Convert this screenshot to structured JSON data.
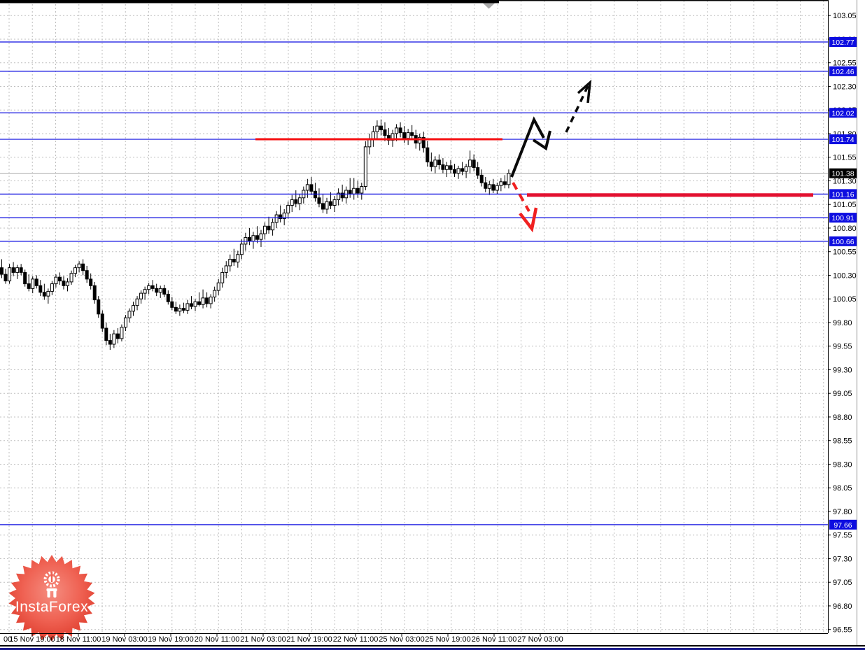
{
  "watermark": {
    "label": "InstaForex"
  },
  "colors": {
    "background": "#ffffff",
    "grid": "#bfbfbf",
    "candle_outline": "#000000",
    "bull_body": "#ffffff",
    "bear_body": "#000000",
    "blue_level": "#0d0de0",
    "blue_label_bg": "#0d0de0",
    "current_label_bg": "#000000",
    "label_text": "#ffffff",
    "tick_text": "#000000",
    "red_line": "#f50f12",
    "red_thick": "#e31130",
    "red_arrow": "#f02020",
    "black_arrow": "#0a0a0a",
    "bid_line": "#ababab",
    "triangle": "#a8a8a8",
    "logo_red_center": "#f58d80",
    "logo_red_mid": "#ef6152",
    "logo_red_edge": "#dd3a2a",
    "bottom_navy": "#1b1b8c"
  },
  "y_axis": {
    "tick_labels": [
      "103.05",
      "102.80",
      "102.55",
      "102.30",
      "102.05",
      "101.80",
      "101.55",
      "101.30",
      "101.05",
      "100.80",
      "100.55",
      "100.30",
      "100.05",
      "99.80",
      "99.55",
      "99.30",
      "99.05",
      "98.80",
      "98.55",
      "98.30",
      "98.05",
      "97.80",
      "97.55",
      "97.30",
      "97.05",
      "96.80",
      "96.55"
    ]
  },
  "x_axis": {
    "labels": [
      "00",
      "15 Nov 19:00",
      "18 Nov 11:00",
      "19 Nov 03:00",
      "19 Nov 19:00",
      "20 Nov 11:00",
      "21 Nov 03:00",
      "21 Nov 19:00",
      "22 Nov 11:00",
      "25 Nov 03:00",
      "25 Nov 19:00",
      "26 Nov 11:00",
      "27 Nov 03:00"
    ]
  },
  "chart_data": {
    "type": "candlestick",
    "title": "",
    "ylabel": "price",
    "y_tick_step": 0.25,
    "y_range": [
      96.45,
      103.2
    ],
    "grid": true,
    "current_price": {
      "value": 101.38,
      "label": "101.38"
    },
    "levels": [
      {
        "price": 102.77,
        "label": "102.77"
      },
      {
        "price": 102.46,
        "label": "102.46"
      },
      {
        "price": 102.02,
        "label": "102.02"
      },
      {
        "price": 101.74,
        "label": "101.74"
      },
      {
        "price": 101.16,
        "label": "101.16"
      },
      {
        "price": 100.91,
        "label": "100.91"
      },
      {
        "price": 100.66,
        "label": "100.66"
      },
      {
        "price": 97.66,
        "label": "97.66"
      }
    ],
    "red_segments": [
      {
        "price": 101.74,
        "from_x": 365,
        "to_x": 718,
        "width": 3,
        "role": "resistance"
      },
      {
        "price": 101.15,
        "from_x": 753,
        "to_x": 1162,
        "width": 5,
        "role": "support"
      }
    ],
    "candles": [
      [
        100.38,
        100.47,
        100.27,
        100.31
      ],
      [
        100.31,
        100.37,
        100.21,
        100.24
      ],
      [
        100.24,
        100.42,
        100.21,
        100.38
      ],
      [
        100.38,
        100.44,
        100.29,
        100.33
      ],
      [
        100.33,
        100.41,
        100.26,
        100.38
      ],
      [
        100.38,
        100.42,
        100.3,
        100.33
      ],
      [
        100.33,
        100.36,
        100.18,
        100.21
      ],
      [
        100.21,
        100.31,
        100.13,
        100.16
      ],
      [
        100.16,
        100.29,
        100.11,
        100.26
      ],
      [
        100.26,
        100.3,
        100.16,
        100.19
      ],
      [
        100.19,
        100.25,
        100.08,
        100.12
      ],
      [
        100.12,
        100.21,
        100.04,
        100.08
      ],
      [
        100.08,
        100.16,
        100.0,
        100.13
      ],
      [
        100.13,
        100.24,
        100.09,
        100.21
      ],
      [
        100.21,
        100.31,
        100.17,
        100.28
      ],
      [
        100.28,
        100.33,
        100.2,
        100.24
      ],
      [
        100.24,
        100.29,
        100.15,
        100.19
      ],
      [
        100.19,
        100.27,
        100.13,
        100.23
      ],
      [
        100.23,
        100.35,
        100.2,
        100.32
      ],
      [
        100.32,
        100.41,
        100.28,
        100.38
      ],
      [
        100.38,
        100.45,
        100.33,
        100.42
      ],
      [
        100.42,
        100.47,
        100.3,
        100.35
      ],
      [
        100.35,
        100.4,
        100.22,
        100.26
      ],
      [
        100.26,
        100.32,
        100.15,
        100.19
      ],
      [
        100.19,
        100.23,
        100.0,
        100.04
      ],
      [
        100.04,
        100.08,
        99.85,
        99.89
      ],
      [
        99.89,
        99.93,
        99.7,
        99.74
      ],
      [
        99.74,
        99.8,
        99.56,
        99.61
      ],
      [
        99.61,
        99.68,
        99.51,
        99.57
      ],
      [
        99.57,
        99.72,
        99.53,
        99.68
      ],
      [
        99.68,
        99.74,
        99.58,
        99.63
      ],
      [
        99.63,
        99.78,
        99.6,
        99.75
      ],
      [
        99.75,
        99.88,
        99.71,
        99.85
      ],
      [
        99.85,
        99.95,
        99.8,
        99.92
      ],
      [
        99.92,
        100.02,
        99.87,
        99.98
      ],
      [
        99.98,
        100.08,
        99.93,
        100.05
      ],
      [
        100.05,
        100.14,
        100.0,
        100.11
      ],
      [
        100.11,
        100.18,
        100.04,
        100.15
      ],
      [
        100.15,
        100.22,
        100.1,
        100.19
      ],
      [
        100.19,
        100.25,
        100.13,
        100.16
      ],
      [
        100.16,
        100.21,
        100.08,
        100.12
      ],
      [
        100.12,
        100.19,
        100.06,
        100.16
      ],
      [
        100.16,
        100.2,
        100.07,
        100.1
      ],
      [
        100.1,
        100.14,
        99.99,
        100.02
      ],
      [
        100.02,
        100.07,
        99.93,
        99.96
      ],
      [
        99.96,
        100.02,
        99.89,
        99.92
      ],
      [
        99.92,
        99.99,
        99.87,
        99.95
      ],
      [
        99.95,
        100.01,
        99.9,
        99.93
      ],
      [
        99.93,
        100.04,
        99.89,
        100.0
      ],
      [
        100.0,
        100.08,
        99.94,
        99.97
      ],
      [
        99.97,
        100.05,
        99.92,
        100.02
      ],
      [
        100.02,
        100.12,
        99.97,
        99.99
      ],
      [
        99.99,
        100.15,
        99.95,
        100.06
      ],
      [
        100.06,
        100.12,
        99.96,
        100.0
      ],
      [
        100.0,
        100.1,
        99.95,
        100.07
      ],
      [
        100.07,
        100.18,
        100.02,
        100.14
      ],
      [
        100.14,
        100.26,
        100.09,
        100.22
      ],
      [
        100.22,
        100.38,
        100.17,
        100.33
      ],
      [
        100.33,
        100.45,
        100.27,
        100.4
      ],
      [
        100.4,
        100.52,
        100.34,
        100.47
      ],
      [
        100.47,
        100.58,
        100.4,
        100.44
      ],
      [
        100.44,
        100.56,
        100.38,
        100.52
      ],
      [
        100.52,
        100.68,
        100.47,
        100.63
      ],
      [
        100.63,
        100.75,
        100.56,
        100.7
      ],
      [
        100.7,
        100.8,
        100.62,
        100.66
      ],
      [
        100.66,
        100.76,
        100.58,
        100.72
      ],
      [
        100.72,
        100.82,
        100.64,
        100.68
      ],
      [
        100.68,
        100.78,
        100.6,
        100.74
      ],
      [
        100.74,
        100.86,
        100.68,
        100.82
      ],
      [
        100.82,
        100.92,
        100.74,
        100.78
      ],
      [
        100.78,
        100.9,
        100.72,
        100.86
      ],
      [
        100.86,
        100.98,
        100.8,
        100.94
      ],
      [
        100.94,
        101.04,
        100.86,
        100.9
      ],
      [
        100.9,
        101.0,
        100.83,
        100.96
      ],
      [
        100.96,
        101.08,
        100.9,
        101.04
      ],
      [
        101.04,
        101.15,
        100.97,
        101.1
      ],
      [
        101.1,
        101.2,
        101.02,
        101.06
      ],
      [
        101.06,
        101.16,
        100.99,
        101.12
      ],
      [
        101.12,
        101.24,
        101.06,
        101.2
      ],
      [
        101.2,
        101.32,
        101.12,
        101.26
      ],
      [
        101.26,
        101.34,
        101.15,
        101.19
      ],
      [
        101.19,
        101.28,
        101.08,
        101.12
      ],
      [
        101.12,
        101.22,
        101.02,
        101.06
      ],
      [
        101.06,
        101.16,
        100.96,
        101.0
      ],
      [
        101.0,
        101.12,
        100.95,
        101.08
      ],
      [
        101.08,
        101.18,
        101.0,
        101.04
      ],
      [
        101.04,
        101.14,
        100.97,
        101.1
      ],
      [
        101.1,
        101.22,
        101.04,
        101.17
      ],
      [
        101.17,
        101.26,
        101.08,
        101.12
      ],
      [
        101.12,
        101.24,
        101.06,
        101.2
      ],
      [
        101.2,
        101.33,
        101.12,
        101.16
      ],
      [
        101.16,
        101.33,
        101.1,
        101.22
      ],
      [
        101.22,
        101.3,
        101.12,
        101.17
      ],
      [
        101.17,
        101.28,
        101.1,
        101.24
      ],
      [
        101.24,
        101.72,
        101.2,
        101.66
      ],
      [
        101.66,
        101.8,
        101.58,
        101.74
      ],
      [
        101.74,
        101.88,
        101.66,
        101.82
      ],
      [
        101.82,
        101.94,
        101.74,
        101.88
      ],
      [
        101.88,
        101.95,
        101.78,
        101.84
      ],
      [
        101.84,
        101.92,
        101.72,
        101.78
      ],
      [
        101.78,
        101.86,
        101.68,
        101.73
      ],
      [
        101.73,
        101.84,
        101.66,
        101.8
      ],
      [
        101.8,
        101.9,
        101.72,
        101.86
      ],
      [
        101.86,
        101.92,
        101.76,
        101.81
      ],
      [
        101.81,
        101.88,
        101.7,
        101.75
      ],
      [
        101.75,
        101.85,
        101.68,
        101.81
      ],
      [
        101.81,
        101.89,
        101.73,
        101.78
      ],
      [
        101.78,
        101.84,
        101.64,
        101.7
      ],
      [
        101.7,
        101.8,
        101.62,
        101.76
      ],
      [
        101.76,
        101.82,
        101.6,
        101.65
      ],
      [
        101.65,
        101.72,
        101.45,
        101.5
      ],
      [
        101.5,
        101.6,
        101.4,
        101.45
      ],
      [
        101.45,
        101.56,
        101.38,
        101.52
      ],
      [
        101.52,
        101.58,
        101.42,
        101.47
      ],
      [
        101.47,
        101.54,
        101.38,
        101.42
      ],
      [
        101.42,
        101.5,
        101.34,
        101.46
      ],
      [
        101.46,
        101.52,
        101.38,
        101.42
      ],
      [
        101.42,
        101.48,
        101.34,
        101.38
      ],
      [
        101.38,
        101.46,
        101.32,
        101.43
      ],
      [
        101.43,
        101.5,
        101.36,
        101.4
      ],
      [
        101.4,
        101.48,
        101.33,
        101.45
      ],
      [
        101.45,
        101.62,
        101.38,
        101.52
      ],
      [
        101.52,
        101.58,
        101.4,
        101.44
      ],
      [
        101.44,
        101.5,
        101.32,
        101.36
      ],
      [
        101.36,
        101.42,
        101.24,
        101.28
      ],
      [
        101.28,
        101.34,
        101.18,
        101.22
      ],
      [
        101.22,
        101.3,
        101.15,
        101.26
      ],
      [
        101.26,
        101.32,
        101.17,
        101.2
      ],
      [
        101.2,
        101.28,
        101.16,
        101.25
      ],
      [
        101.25,
        101.33,
        101.19,
        101.29
      ],
      [
        101.29,
        101.36,
        101.22,
        101.26
      ],
      [
        101.26,
        101.42,
        101.22,
        101.38
      ]
    ]
  },
  "annotations": {
    "bullish_zigzag_a": [
      [
        731,
        253
      ],
      [
        763,
        171
      ],
      [
        777,
        197
      ]
    ],
    "bullish_zigzag_b": [
      [
        762,
        200
      ],
      [
        780,
        212
      ],
      [
        786,
        187
      ]
    ],
    "bullish_dashed": [
      [
        809,
        189
      ],
      [
        840,
        123
      ]
    ],
    "bullish_arrowhead": [
      [
        826,
        133
      ],
      [
        843,
        118
      ],
      [
        840,
        147
      ]
    ],
    "bearish_dashed": [
      [
        733,
        261
      ],
      [
        756,
        302
      ]
    ],
    "bearish_arrowhead": [
      [
        743,
        305
      ],
      [
        760,
        327
      ],
      [
        766,
        297
      ]
    ]
  }
}
